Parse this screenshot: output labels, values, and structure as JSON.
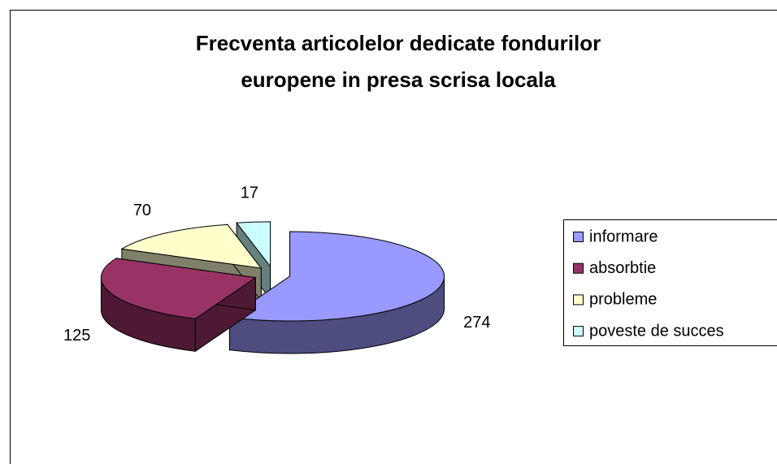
{
  "chart_data": {
    "type": "pie3d",
    "title": [
      "Frecventa articolelor dedicate fondurilor",
      "europene in presa scrisa locala"
    ],
    "categories": [
      "informare",
      "absorbtie",
      "probleme",
      "poveste de succes"
    ],
    "values": [
      274,
      125,
      70,
      17
    ],
    "colors": [
      "#9999ff",
      "#993366",
      "#ffffcc",
      "#ccffff"
    ],
    "side_colors": [
      "#4d4d80",
      "#4d1933",
      "#80806a",
      "#668080"
    ],
    "legend": "right"
  }
}
